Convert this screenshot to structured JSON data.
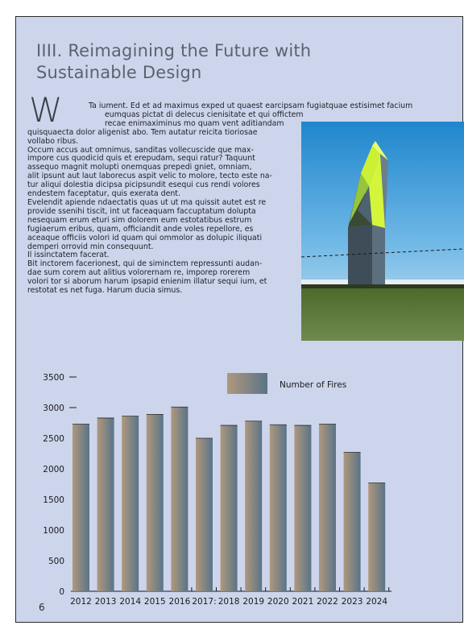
{
  "section": {
    "title": "IIII. Reimagining the Future with Sustainable Design",
    "dropcap": "W"
  },
  "body_lines": [
    "Ta iument. Ed et ad maximus exped ut quaest earcipsam fugiatquae estisimet facium",
    "eumquas pictat di delecus cienisitate et qui offictem",
    "recae enimaximinus mo quam vent aditiandam",
    "quisquaecta dolor aligenist abo. Tem autatur reicita tioriosae",
    "vollabo ribus.",
    "Occum accus aut omnimus, sanditas vollecuscide que max-",
    "impore cus quodicid quis et erepudam, sequi ratur? Taquunt",
    "assequo magnit molupti onemquas prepedi gniet, omniam,",
    "alit ipsunt aut laut laborecus aspit velic to molore, tecto este na-",
    "tur aliqui dolestia dicipsa picipsundit esequi cus rendi volores",
    "endestem faceptatur, quis exerata dent.",
    "Evelendit apiende ndaectatis quas ut ut ma quissit autet est re",
    "provide ssenihi tiscit, int ut faceaquam faccuptatum dolupta",
    "nesequam erum eturi sim dolorem eum estotatibus estrum",
    "fugiaerum eribus, quam, officiandit ande voles repellore, es",
    "aceaque officiis volori id quam qui ommolor as dolupic iliquati",
    "demperi orrovid min consequunt.",
    "Il issinctatem facerat.",
    "Bit inctorem facerionest, qui de siminctem repressunti audan-",
    "dae sum corem aut alitius volorernam re, imporep rorerem",
    "volori tor si aborum harum ipsapid enienim illatur sequi ium, et",
    "restotat es net fuga. Harum ducia simus."
  ],
  "page_number": "6",
  "colors": {
    "page_bg": "#cdd5ec",
    "bar_gradient_start": "#b0987c",
    "bar_gradient_end": "#5a7488",
    "tower_yellow": "#ccf033",
    "sky": "#2a8fd0"
  },
  "chart_data": {
    "type": "bar",
    "categories": [
      "2012",
      "2013",
      "2014",
      "2015",
      "2016",
      "2017:",
      "2018",
      "2019",
      "2020",
      "2021",
      "2022",
      "2023",
      "2024"
    ],
    "series": [
      {
        "name": "Number of Fires",
        "values": [
          2730,
          2830,
          2860,
          2890,
          3010,
          2500,
          2710,
          2780,
          2720,
          2710,
          2730,
          2270,
          1770
        ]
      }
    ],
    "yticks": [
      "0",
      "500",
      "1000",
      "1500",
      "2000",
      "2500",
      "3000",
      "3500"
    ],
    "ylim": [
      0,
      3500
    ],
    "grid": false,
    "legend": "top-right"
  }
}
